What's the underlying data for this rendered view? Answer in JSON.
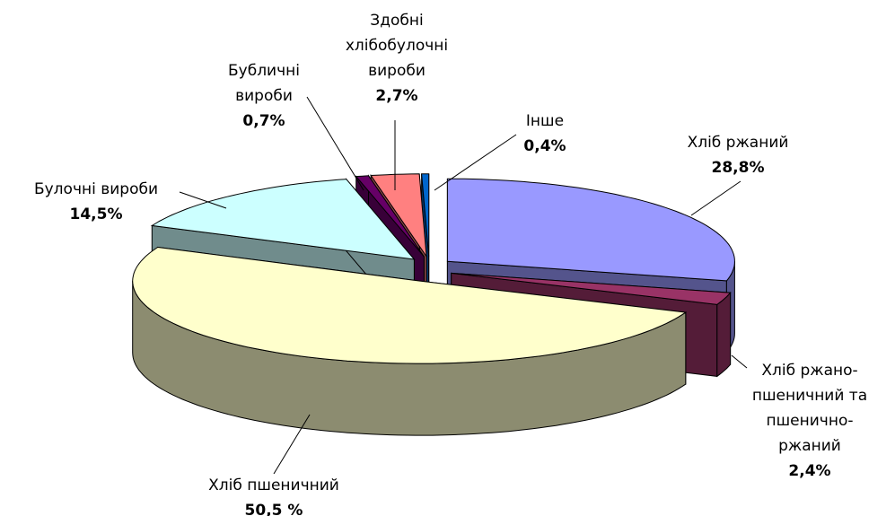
{
  "chart_data": {
    "type": "pie3d",
    "categories": [
      "Хліб ржаний",
      "Хліб ржано-\nпшеничний та\nпшенично-\nржаний",
      "Хліб пшеничний",
      "Булочні вироби",
      "Бубличні\nвироби",
      "Здобні\nхлібобулочні\nвироби",
      "Інше"
    ],
    "values": [
      28.8,
      2.4,
      50.5,
      14.5,
      0.7,
      2.7,
      0.4
    ],
    "value_labels": [
      "28,8%",
      "2,4%",
      "50,5 %",
      "14,5%",
      "0,7%",
      "2,7%",
      "0,4%"
    ],
    "colors": [
      "#9999ff",
      "#993366",
      "#ffffcc",
      "#ccffff",
      "#660066",
      "#ff8080",
      "#0066cc"
    ]
  }
}
